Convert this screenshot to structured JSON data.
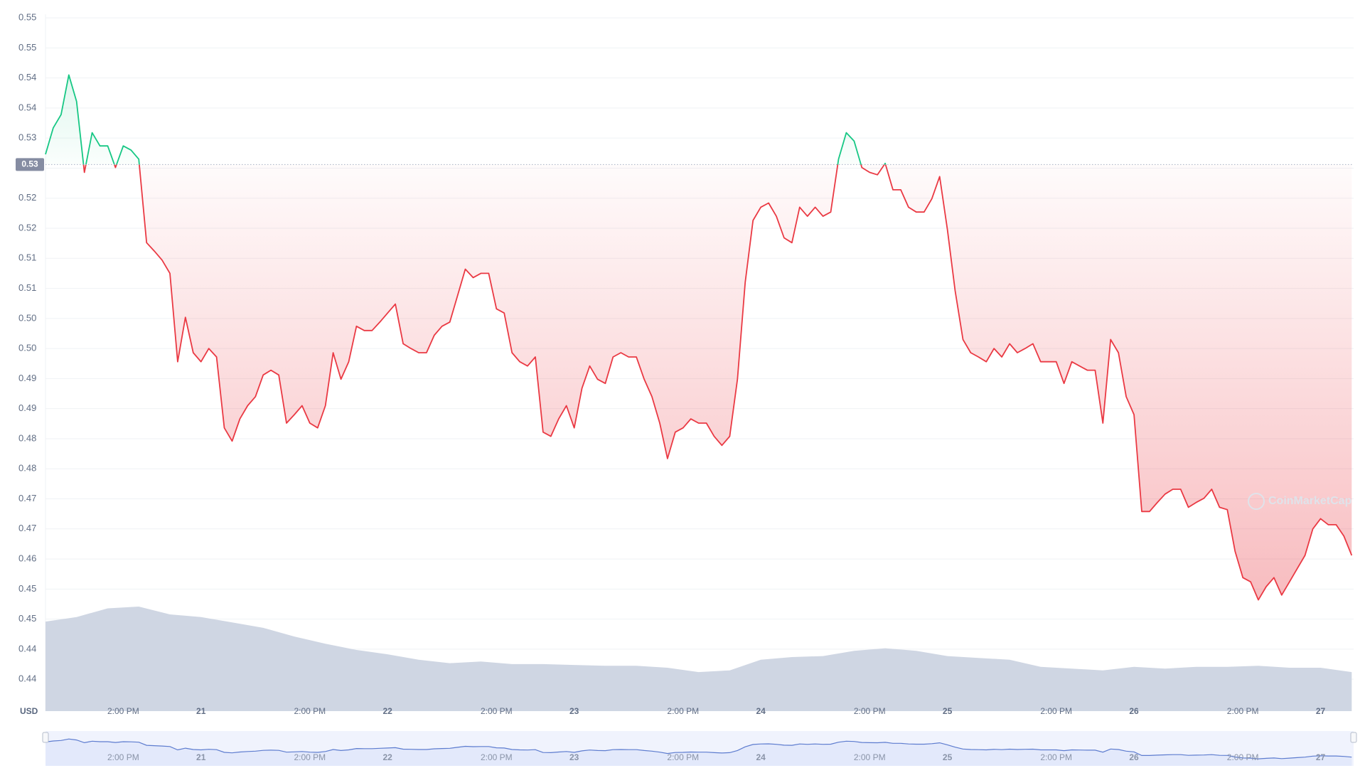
{
  "chart_data": {
    "type": "line",
    "axis_unit": "USD",
    "watermark": "CoinMarketCap",
    "grid": true,
    "x": [
      4,
      5,
      6,
      7,
      8,
      9,
      10,
      11,
      12,
      13,
      14,
      15,
      16,
      17,
      18,
      19,
      20,
      21,
      22,
      23,
      24,
      25,
      26,
      27,
      28,
      29,
      30,
      31,
      32,
      33,
      34,
      35,
      36,
      37,
      38,
      39,
      40,
      41,
      42,
      43,
      44,
      45,
      46,
      47,
      48,
      49,
      50,
      51,
      52,
      53,
      54,
      55,
      56,
      57,
      58,
      59,
      60,
      61,
      62,
      63,
      64,
      65,
      66,
      67,
      68,
      69,
      70,
      71,
      72,
      73,
      74,
      75,
      76,
      77,
      78,
      79,
      80,
      81,
      82,
      83,
      84,
      85,
      86,
      87,
      88,
      89,
      90,
      91,
      92,
      93,
      94,
      95,
      96,
      97,
      98,
      99,
      100,
      101,
      102,
      103,
      104,
      105,
      106,
      107,
      108,
      109,
      110,
      111,
      112,
      113,
      114,
      115,
      116,
      117,
      118,
      119,
      120,
      121,
      122,
      123,
      124,
      125,
      126,
      127,
      128,
      129,
      130,
      131,
      132,
      133,
      134,
      135,
      136,
      137,
      138,
      139,
      140,
      141,
      142,
      143,
      144,
      145,
      146,
      147,
      148,
      149,
      150,
      151,
      152,
      153,
      154,
      155,
      156,
      157,
      158,
      159,
      160,
      161,
      162,
      163,
      164,
      165,
      166,
      167,
      168,
      169,
      170,
      171,
      172
    ],
    "xlim": [
      4,
      172.25
    ],
    "xticks": [
      {
        "value": 14,
        "label": "2:00 PM"
      },
      {
        "value": 24,
        "label": "21"
      },
      {
        "value": 38,
        "label": "2:00 PM"
      },
      {
        "value": 48,
        "label": "22"
      },
      {
        "value": 62,
        "label": "2:00 PM"
      },
      {
        "value": 72,
        "label": "23"
      },
      {
        "value": 86,
        "label": "2:00 PM"
      },
      {
        "value": 96,
        "label": "24"
      },
      {
        "value": 110,
        "label": "2:00 PM"
      },
      {
        "value": 120,
        "label": "25"
      },
      {
        "value": 134,
        "label": "2:00 PM"
      },
      {
        "value": 144,
        "label": "26"
      },
      {
        "value": 158,
        "label": "2:00 PM"
      },
      {
        "value": 168,
        "label": "27"
      }
    ],
    "ylim": [
      0.4347,
      0.5506
    ],
    "yticks": [
      0.44,
      {
        "value": 0.445,
        "label": "0.44"
      },
      0.45,
      {
        "value": 0.455,
        "label": "0.45"
      },
      0.46,
      {
        "value": 0.465,
        "label": "0.47"
      },
      0.47,
      {
        "value": 0.475,
        "label": "0.48"
      },
      0.48,
      {
        "value": 0.485,
        "label": "0.49"
      },
      0.49,
      {
        "value": 0.495,
        "label": "0.50"
      },
      {
        "value": 0.5,
        "label": "0.50"
      },
      {
        "value": 0.505,
        "label": "0.51"
      },
      0.51,
      {
        "value": 0.515,
        "label": "0.52"
      },
      0.52,
      {
        "value": 0.525,
        "label": "0.53"
      },
      0.53,
      {
        "value": 0.535,
        "label": "0.54"
      },
      0.54,
      {
        "value": 0.545,
        "label": "0.55"
      },
      0.55
    ],
    "y2lim": [
      0,
      400
    ],
    "reference_line": {
      "value": 0.5256,
      "label": "0.53",
      "color": "#858ca2"
    },
    "series": [
      {
        "color_above": "#16c784",
        "color_below": "#ea3943",
        "values": [
          0.5273,
          0.5317,
          0.5339,
          0.5405,
          0.5361,
          0.5243,
          0.5309,
          0.5287,
          0.5287,
          0.5251,
          0.5287,
          0.528,
          0.5265,
          0.5126,
          0.5112,
          0.5097,
          0.5075,
          0.4928,
          0.5002,
          0.4943,
          0.4928,
          0.495,
          0.4936,
          0.4818,
          0.4796,
          0.4833,
          0.4855,
          0.487,
          0.4906,
          0.4914,
          0.4906,
          0.4826,
          0.484,
          0.4855,
          0.4826,
          0.4818,
          0.4855,
          0.4943,
          0.4899,
          0.4928,
          0.4987,
          0.498,
          0.498,
          0.4994,
          0.5009,
          0.5024,
          0.4958,
          0.495,
          0.4943,
          0.4943,
          0.4972,
          0.4987,
          0.4994,
          0.5038,
          0.5082,
          0.5068,
          0.5075,
          0.5075,
          0.5016,
          0.5009,
          0.4943,
          0.4928,
          0.4921,
          0.4936,
          0.4811,
          0.4804,
          0.4833,
          0.4855,
          0.4818,
          0.4884,
          0.4921,
          0.4899,
          0.4892,
          0.4936,
          0.4943,
          0.4936,
          0.4936,
          0.4899,
          0.487,
          0.4826,
          0.4767,
          0.4811,
          0.4818,
          0.4833,
          0.4826,
          0.4826,
          0.4804,
          0.4789,
          0.4804,
          0.4899,
          0.506,
          0.5163,
          0.5185,
          0.5192,
          0.517,
          0.5134,
          0.5126,
          0.5185,
          0.517,
          0.5185,
          0.517,
          0.5177,
          0.5265,
          0.5309,
          0.5295,
          0.5251,
          0.5243,
          0.5239,
          0.5258,
          0.5214,
          0.5214,
          0.5185,
          0.5177,
          0.5177,
          0.5199,
          0.5236,
          0.5148,
          0.5046,
          0.4965,
          0.4943,
          0.4936,
          0.4928,
          0.495,
          0.4936,
          0.4958,
          0.4943,
          0.495,
          0.4958,
          0.4928,
          0.4928,
          0.4928,
          0.4892,
          0.4928,
          0.4921,
          0.4914,
          0.4914,
          0.4826,
          0.4965,
          0.4943,
          0.487,
          0.484,
          0.4679,
          0.4679,
          0.4694,
          0.4708,
          0.4716,
          0.4716,
          0.4686,
          0.4694,
          0.4701,
          0.4716,
          0.4686,
          0.4682,
          0.4613,
          0.4569,
          0.4562,
          0.4532,
          0.4554,
          0.4569,
          0.454,
          0.4562,
          0.4584,
          0.4606,
          0.465,
          0.4667,
          0.4657,
          0.4657,
          0.4638,
          0.4606
        ]
      },
      {
        "type": "area",
        "axis": "y2",
        "color": "#cfd6e3",
        "x": [
          4,
          8,
          12,
          16,
          20,
          24,
          28,
          32,
          36,
          40,
          44,
          48,
          52,
          56,
          60,
          64,
          68,
          72,
          76,
          80,
          84,
          88,
          92,
          96,
          100,
          104,
          108,
          112,
          116,
          120,
          124,
          128,
          132,
          136,
          140,
          144,
          148,
          152,
          156,
          160,
          164,
          168,
          172
        ],
        "values": [
          51.4,
          54,
          59,
          60,
          55.5,
          54,
          50.9,
          47.8,
          42.8,
          38.7,
          35.1,
          32.6,
          29.5,
          27.5,
          28.5,
          27,
          27,
          26.5,
          26,
          26,
          24.9,
          22.4,
          23.4,
          29.5,
          31,
          31.6,
          34.6,
          36.1,
          34.6,
          31.6,
          30.5,
          29.5,
          25.4,
          24.4,
          23.4,
          25.4,
          24.4,
          25.4,
          25.4,
          26,
          24.9,
          24.9,
          22.4
        ]
      }
    ],
    "navigator": {
      "color": "#5d7ccf",
      "fill": "#e3e9fb"
    }
  }
}
